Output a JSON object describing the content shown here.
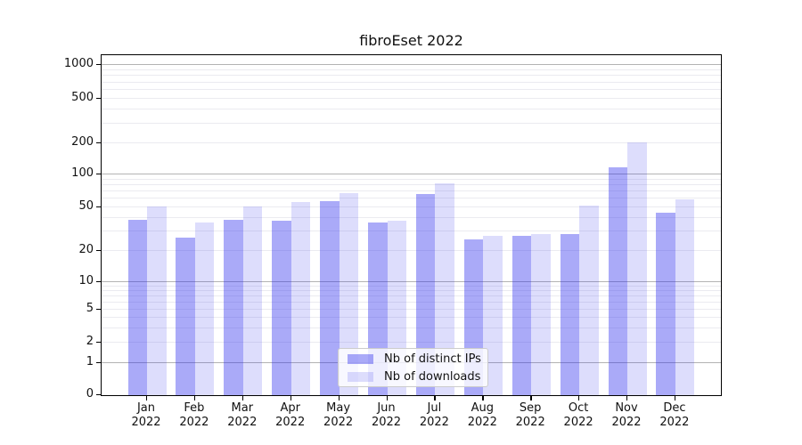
{
  "chart_data": {
    "type": "bar",
    "title": "fibroEset 2022",
    "categories": [
      "Jan",
      "Feb",
      "Mar",
      "Apr",
      "May",
      "Jun",
      "Jul",
      "Aug",
      "Sep",
      "Oct",
      "Nov",
      "Dec"
    ],
    "category_year": "2022",
    "series": [
      {
        "name": "Nb of distinct IPs",
        "color": "rgba(43,43,238,0.40)",
        "values": [
          38,
          26,
          38,
          37,
          56,
          36,
          65,
          25,
          27,
          28,
          115,
          44
        ]
      },
      {
        "name": "Nb of downloads",
        "color": "rgba(43,43,238,0.16)",
        "values": [
          50,
          36,
          50,
          55,
          66,
          37,
          82,
          27,
          28,
          51,
          200,
          58
        ]
      }
    ],
    "yscale": "symlog",
    "ytick_values": [
      1000,
      500,
      200,
      100,
      50,
      20,
      10,
      5,
      2,
      1,
      0
    ],
    "ytick_labels": [
      "1000",
      "500",
      "200",
      "100",
      "50",
      "20",
      "10",
      "5",
      "2",
      "1",
      "0"
    ],
    "ylim": [
      0,
      1000
    ],
    "xlabel": "",
    "ylabel": "",
    "grid": "horizontal",
    "legend_position": "lower center",
    "colors": {
      "major_grid": "#b3b3b3",
      "minor_grid": "#ebebf0",
      "axis": "#000000",
      "background": "#ffffff"
    }
  }
}
